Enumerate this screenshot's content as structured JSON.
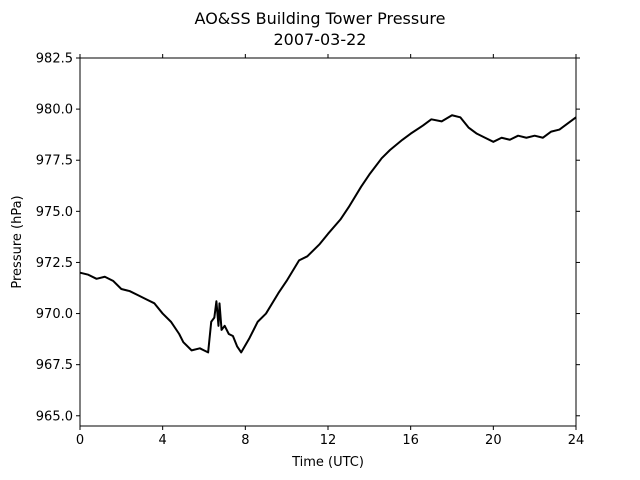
{
  "chart_data": {
    "type": "line",
    "title": "AO&SS Building Tower Pressure",
    "subtitle": "2007-03-22",
    "xlabel": "Time (UTC)",
    "ylabel": "Pressure (hPa)",
    "xlim": [
      0,
      24
    ],
    "ylim": [
      964.5,
      982.5
    ],
    "xticks": [
      0,
      4,
      8,
      12,
      16,
      20,
      24
    ],
    "xtick_labels": [
      "0",
      "4",
      "8",
      "12",
      "16",
      "20",
      "24"
    ],
    "yticks": [
      965.0,
      967.5,
      970.0,
      972.5,
      975.0,
      977.5,
      980.0,
      982.5
    ],
    "ytick_labels": [
      "965.0",
      "967.5",
      "970.0",
      "972.5",
      "975.0",
      "977.5",
      "980.0",
      "982.5"
    ],
    "grid": false,
    "line_color": "#000000",
    "series": [
      {
        "x": [
          0,
          0.4,
          0.8,
          1.2,
          1.6,
          2.0,
          2.4,
          2.8,
          3.2,
          3.6,
          4.0,
          4.4,
          4.8,
          5.0,
          5.4,
          5.8,
          6.0,
          6.2,
          6.35,
          6.5,
          6.6,
          6.7,
          6.75,
          6.85,
          7.0,
          7.2,
          7.4,
          7.6,
          7.8,
          8.2,
          8.6,
          9.0,
          9.6,
          10.0,
          10.6,
          11.0,
          11.6,
          12.0,
          12.6,
          13.0,
          13.6,
          14.0,
          14.6,
          15.0,
          15.6,
          16.0,
          16.6,
          17.0,
          17.5,
          18.0,
          18.4,
          18.8,
          19.2,
          19.6,
          20.0,
          20.4,
          20.8,
          21.2,
          21.6,
          22.0,
          22.4,
          22.8,
          23.2,
          23.6,
          24.0
        ],
        "y": [
          972.0,
          971.9,
          971.7,
          971.8,
          971.6,
          971.2,
          971.1,
          970.9,
          970.7,
          970.5,
          970.0,
          969.6,
          969.0,
          968.6,
          968.2,
          968.3,
          968.2,
          968.1,
          969.6,
          969.8,
          970.6,
          969.4,
          970.5,
          969.2,
          969.4,
          969.0,
          968.9,
          968.4,
          968.1,
          968.8,
          969.6,
          970.0,
          971.0,
          971.6,
          972.6,
          972.8,
          973.4,
          973.9,
          974.6,
          975.2,
          976.2,
          976.8,
          977.6,
          978.0,
          978.5,
          978.8,
          979.2,
          979.5,
          979.4,
          979.7,
          979.6,
          979.1,
          978.8,
          978.6,
          978.4,
          978.6,
          978.5,
          978.7,
          978.6,
          978.7,
          978.6,
          978.9,
          979.0,
          979.3,
          979.6
        ]
      }
    ]
  }
}
